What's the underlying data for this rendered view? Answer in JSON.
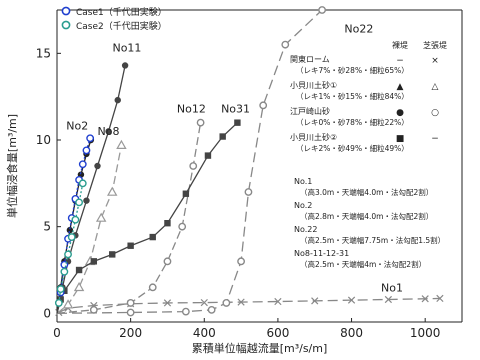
{
  "chart_data": {
    "type": "line",
    "xlabel": "累積単位幅越流量[m³/s/m]",
    "ylabel": "単位幅浸食量[m³/m]",
    "xlim": [
      0,
      1100
    ],
    "ylim": [
      -0.5,
      17.5
    ],
    "x_ticks": [
      "0",
      "200",
      "400",
      "600",
      "800",
      "1000"
    ],
    "y_ticks": [
      "0",
      "5",
      "10",
      "15"
    ],
    "grid": false,
    "legend_position": "top-left",
    "legend": [
      {
        "name": "Case1（千代田実験）",
        "marker": "open-circle",
        "color": "#1f3fcf"
      },
      {
        "name": "Case2（千代田実験）",
        "marker": "open-circle",
        "color": "#2a9d8f"
      }
    ],
    "series": [
      {
        "name": "No1",
        "marker": "x",
        "color": "#888888",
        "dash": "10,5",
        "x": [
          5,
          30,
          100,
          200,
          300,
          400,
          500,
          600,
          700,
          800,
          900,
          1000,
          1040
        ],
        "y": [
          0.05,
          0.3,
          0.45,
          0.55,
          0.6,
          0.62,
          0.65,
          0.68,
          0.72,
          0.76,
          0.8,
          0.84,
          0.86
        ]
      },
      {
        "name": "No2",
        "marker": "filled-circle",
        "color": "#222222",
        "dash": "",
        "x": [
          0,
          10,
          20,
          35,
          50,
          65,
          80,
          92
        ],
        "y": [
          0,
          1.5,
          3.0,
          4.8,
          6.5,
          8.0,
          9.2,
          10.0
        ]
      },
      {
        "name": "No8",
        "marker": "open-triangle",
        "color": "#999999",
        "dash": "8,4",
        "x": [
          0,
          30,
          60,
          90,
          120,
          150,
          175
        ],
        "y": [
          0,
          0.5,
          1.5,
          3.0,
          5.5,
          7.0,
          9.7
        ]
      },
      {
        "name": "No11",
        "marker": "filled-circle",
        "color": "#444444",
        "dash": "",
        "x": [
          0,
          15,
          30,
          50,
          80,
          110,
          140,
          165,
          185
        ],
        "y": [
          0,
          1.5,
          3.0,
          4.5,
          6.5,
          8.5,
          10.5,
          12.3,
          14.3
        ]
      },
      {
        "name": "No12",
        "marker": "open-circle",
        "color": "#888888",
        "dash": "8,4",
        "x": [
          0,
          100,
          200,
          260,
          300,
          340,
          370,
          390
        ],
        "y": [
          0,
          0.2,
          0.6,
          1.5,
          3.0,
          5.0,
          8.5,
          11.0
        ]
      },
      {
        "name": "No22",
        "marker": "open-circle",
        "color": "#888888",
        "dash": "10,5",
        "x": [
          0,
          200,
          350,
          420,
          460,
          500,
          520,
          560,
          620,
          720
        ],
        "y": [
          0,
          0.05,
          0.1,
          0.2,
          0.6,
          3.0,
          7.0,
          12.0,
          15.5,
          17.5
        ]
      },
      {
        "name": "No31",
        "marker": "filled-square",
        "color": "#444444",
        "dash": "",
        "x": [
          0,
          10,
          20,
          60,
          100,
          150,
          200,
          260,
          300,
          350,
          410,
          450,
          490
        ],
        "y": [
          0,
          0.8,
          1.3,
          2.5,
          3.0,
          3.4,
          3.9,
          4.4,
          5.2,
          6.9,
          9.1,
          10.2,
          11.0
        ]
      },
      {
        "name": "Case1（千代田実験）",
        "marker": "open-circle",
        "color": "#1f3fcf",
        "dash": "2,2",
        "x": [
          10,
          20,
          30,
          40,
          50,
          60,
          70,
          80,
          90
        ],
        "y": [
          1.2,
          2.8,
          4.3,
          5.5,
          6.6,
          7.7,
          8.6,
          9.4,
          10.1
        ]
      },
      {
        "name": "Case2（千代田実験）",
        "marker": "open-circle",
        "color": "#2a9d8f",
        "dash": "2,2",
        "x": [
          5,
          10,
          20,
          30,
          40,
          50,
          60,
          70
        ],
        "y": [
          0.6,
          1.4,
          2.4,
          3.4,
          4.4,
          5.4,
          6.4,
          7.5
        ]
      }
    ],
    "curve_labels": [
      {
        "text": "No22",
        "x": 820,
        "y": 16.2
      },
      {
        "text": "No11",
        "x": 190,
        "y": 15.1
      },
      {
        "text": "No12",
        "x": 365,
        "y": 11.6
      },
      {
        "text": "No31",
        "x": 485,
        "y": 11.6
      },
      {
        "text": "No2",
        "x": 55,
        "y": 10.6
      },
      {
        "text": "No8",
        "x": 140,
        "y": 10.3
      },
      {
        "text": "No1",
        "x": 910,
        "y": 1.25
      }
    ],
    "annotation": {
      "header_col1": "裸堤",
      "header_col2": "芝張堤",
      "rows": [
        {
          "name": "関東ローム",
          "detail": "（レキ7%・砂28%・細粒65%）",
          "sym1": "−",
          "sym2": "×"
        },
        {
          "name": "小貝川土砂①",
          "detail": "（レキ1%・砂15%・細粒84%）",
          "sym1": "▲",
          "sym2": "△"
        },
        {
          "name": "江戸崎山砂",
          "detail": "（レキ0%・砂78%・細粒22%）",
          "sym1": "●",
          "sym2": "○"
        },
        {
          "name": "小貝川土砂②",
          "detail": "（レキ2%・砂49%・細粒49%）",
          "sym1": "■",
          "sym2": "−"
        }
      ],
      "conditions": [
        {
          "title": "No.1",
          "detail": "（高3.0m・天端幅4.0m・法勾配2割）"
        },
        {
          "title": "No.2",
          "detail": "（高2.8m・天端幅4.0m・法勾配2割）"
        },
        {
          "title": "No.22",
          "detail": "（高2.5m・天端幅7.75m・法勾配1.5割）"
        },
        {
          "title": "No8-11-12-31",
          "detail": "（高2.5m・天端幅4m・法勾配2割）"
        }
      ]
    }
  }
}
